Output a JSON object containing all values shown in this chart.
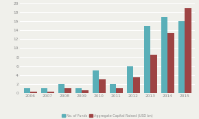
{
  "years": [
    "2006",
    "2007",
    "2008",
    "2009",
    "2010",
    "2011",
    "2012",
    "2013",
    "2014",
    "2015"
  ],
  "no_of_funds": [
    1,
    1,
    2,
    1,
    5,
    2,
    6,
    15,
    17,
    16
  ],
  "agg_capital": [
    0.3,
    0.2,
    1.0,
    0.5,
    3.0,
    1.0,
    3.5,
    8.5,
    13.5,
    19.0
  ],
  "color_funds": "#5aafb8",
  "color_capital": "#9e4444",
  "ylim": [
    0,
    20
  ],
  "yticks": [
    0,
    2,
    4,
    6,
    8,
    10,
    12,
    14,
    16,
    18,
    20
  ],
  "legend_funds": "No. of Funds",
  "legend_capital": "Aggregate Capital Raised (USD bn)",
  "bg_color": "#f0f0eb",
  "grid_color": "#ffffff",
  "bar_width": 0.38,
  "tick_color": "#888888",
  "tick_fontsize": 4.2
}
